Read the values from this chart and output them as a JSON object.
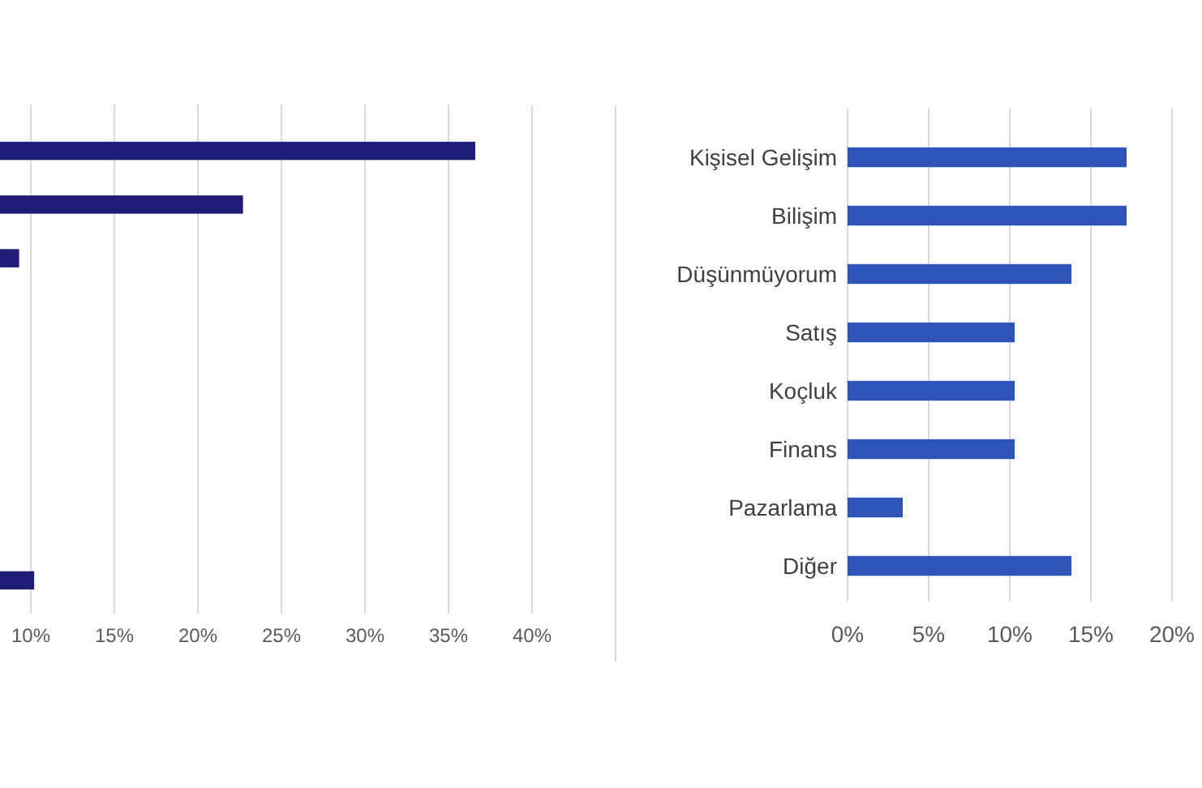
{
  "chart_data": [
    {
      "type": "bar",
      "orientation": "horizontal",
      "categories": [
        null,
        null,
        null,
        null,
        null,
        null,
        null,
        null,
        null
      ],
      "values": [
        36.6,
        22.7,
        9.3,
        null,
        null,
        null,
        null,
        null,
        10.2
      ],
      "color": "#1f1d75",
      "xlim": [
        0,
        40
      ],
      "xticks": [
        {
          "value": 10,
          "label": "10%"
        },
        {
          "value": 15,
          "label": "15%"
        },
        {
          "value": 20,
          "label": "20%"
        },
        {
          "value": 25,
          "label": "25%"
        },
        {
          "value": 30,
          "label": "30%"
        },
        {
          "value": 35,
          "label": "35%"
        },
        {
          "value": 40,
          "label": "40%"
        }
      ],
      "grid": "x"
    },
    {
      "type": "bar",
      "orientation": "horizontal",
      "categories": [
        "Kişisel Gelişim",
        "Bilişim",
        "Düşünmüyorum",
        "Satış",
        "Koçluk",
        "Finans",
        "Pazarlama",
        "Diğer"
      ],
      "values": [
        17.2,
        17.2,
        13.8,
        10.3,
        10.3,
        10.3,
        3.4,
        13.8
      ],
      "color": "#2e53b9",
      "xlim": [
        0,
        20
      ],
      "xticks": [
        {
          "value": 0,
          "label": "0%"
        },
        {
          "value": 5,
          "label": "5%"
        },
        {
          "value": 10,
          "label": "10%"
        },
        {
          "value": 15,
          "label": "15%"
        },
        {
          "value": 20,
          "label": "20%"
        }
      ],
      "grid": "x"
    }
  ]
}
